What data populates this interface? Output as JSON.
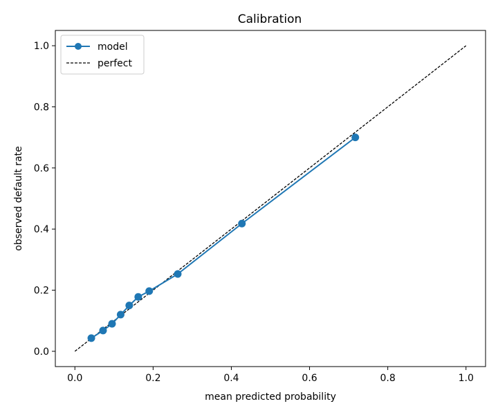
{
  "chart_data": {
    "type": "line",
    "title": "Calibration",
    "xlabel": "mean predicted probability",
    "ylabel": "observed default rate",
    "xlim": [
      -0.05,
      1.05
    ],
    "ylim": [
      -0.05,
      1.05
    ],
    "xticks": [
      0.0,
      0.2,
      0.4,
      0.6,
      0.8,
      1.0
    ],
    "yticks": [
      0.0,
      0.2,
      0.4,
      0.6,
      0.8,
      1.0
    ],
    "xtick_labels": [
      "0.0",
      "0.2",
      "0.4",
      "0.6",
      "0.8",
      "1.0"
    ],
    "ytick_labels": [
      "0.0",
      "0.2",
      "0.4",
      "0.6",
      "0.8",
      "1.0"
    ],
    "grid": false,
    "legend_position": "top-left",
    "series": [
      {
        "name": "model",
        "style": "solid-line-with-circle-markers",
        "color": "#1f77b4",
        "x": [
          0.042,
          0.072,
          0.095,
          0.117,
          0.139,
          0.162,
          0.19,
          0.263,
          0.427,
          0.717
        ],
        "y": [
          0.043,
          0.068,
          0.09,
          0.12,
          0.15,
          0.178,
          0.197,
          0.253,
          0.418,
          0.7
        ]
      },
      {
        "name": "perfect",
        "style": "dashed-line",
        "color": "#000000",
        "x": [
          0.0,
          1.0
        ],
        "y": [
          0.0,
          1.0
        ]
      }
    ]
  }
}
